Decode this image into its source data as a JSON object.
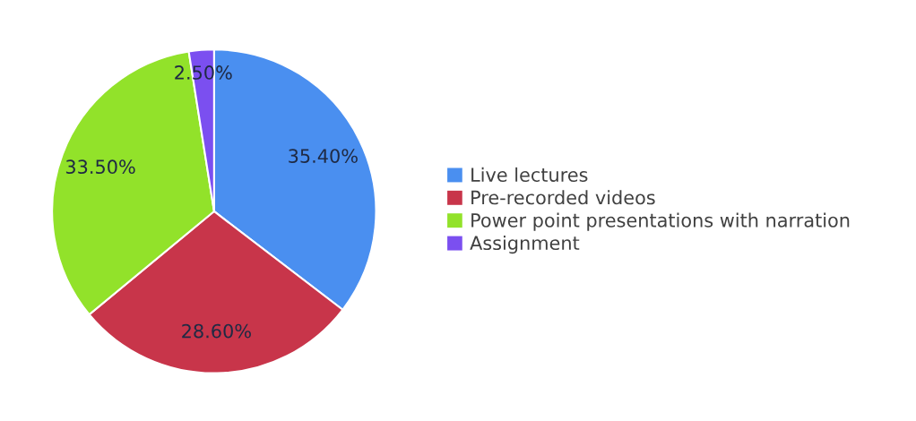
{
  "chart_data": {
    "type": "pie",
    "categories": [
      "Live lectures",
      "Pre-recorded videos",
      "Power point presentations with narration",
      "Assignment"
    ],
    "values": [
      35.4,
      28.6,
      33.5,
      2.5
    ],
    "value_labels": [
      "35.40%",
      "28.60%",
      "33.50%",
      "2.50%"
    ],
    "colors": [
      "#4a8ff0",
      "#c8354a",
      "#92e22a",
      "#7b4ff0"
    ],
    "legend": "right"
  }
}
